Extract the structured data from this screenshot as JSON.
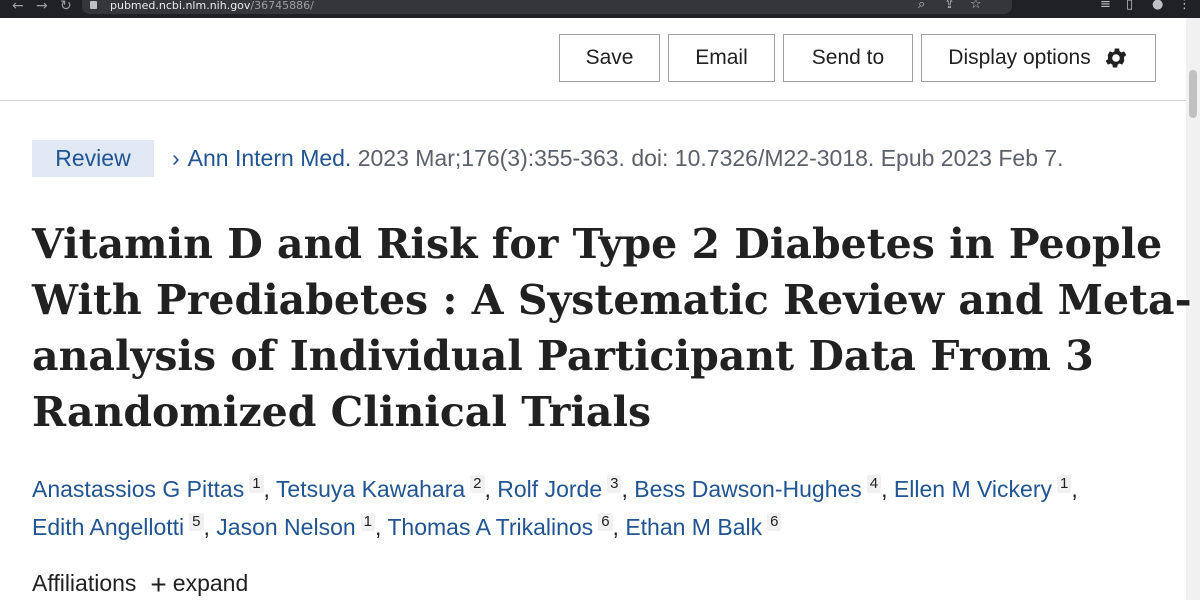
{
  "browser": {
    "url_host": "pubmed.ncbi.nlm.nih.gov",
    "url_path": "/36745886/",
    "back_icon": "arrow-left-icon",
    "forward_icon": "arrow-right-icon",
    "reload_icon": "reload-icon",
    "toolbar_icons": [
      "zoom-icon",
      "share-icon",
      "star-icon",
      "reading-list-icon",
      "sidebar-icon",
      "menu-icon"
    ]
  },
  "toolbar": {
    "save_label": "Save",
    "email_label": "Email",
    "send_to_label": "Send to",
    "display_options_label": "Display options",
    "display_options_icon": "gear-icon"
  },
  "article": {
    "publication_type": "Review",
    "journal": "Ann Intern Med.",
    "citation_details": "2023 Mar;176(3):355-363. doi: 10.7326/M22-3018. Epub 2023 Feb 7.",
    "title_lines": [
      "Vitamin D and Risk for Type 2 Diabetes in People",
      "With Prediabetes : A Systematic Review and Meta-",
      "analysis of Individual Participant Data From 3",
      "Randomized Clinical Trials"
    ],
    "authors": [
      {
        "name": "Anastassios G Pittas",
        "affiliation": "1"
      },
      {
        "name": "Tetsuya Kawahara",
        "affiliation": "2"
      },
      {
        "name": "Rolf Jorde",
        "affiliation": "3"
      },
      {
        "name": "Bess Dawson-Hughes",
        "affiliation": "4"
      },
      {
        "name": "Ellen M Vickery",
        "affiliation": "1"
      },
      {
        "name": "Edith Angellotti",
        "affiliation": "5"
      },
      {
        "name": "Jason Nelson",
        "affiliation": "1"
      },
      {
        "name": "Thomas A Trikalinos",
        "affiliation": "6"
      },
      {
        "name": "Ethan M Balk",
        "affiliation": "6"
      }
    ],
    "affiliations_label": "Affiliations",
    "expand_label": "expand",
    "expand_icon": "plus-icon"
  },
  "colors": {
    "link": "#205493",
    "badge_bg": "#dfe8f3",
    "text": "#212121",
    "chrome": "#202124"
  }
}
